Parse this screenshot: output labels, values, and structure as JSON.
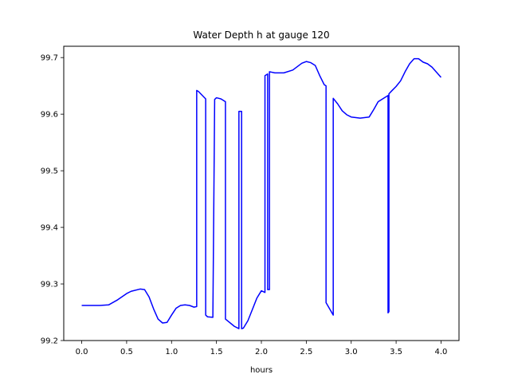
{
  "chart_data": {
    "type": "line",
    "title": "Water Depth h at gauge 120",
    "xlabel": "hours",
    "ylabel": "",
    "xlim": [
      -0.2,
      4.2
    ],
    "ylim": [
      99.2,
      99.72
    ],
    "grid": false,
    "legend": "none",
    "xticks": [
      {
        "value": 0.0,
        "label": "0.0"
      },
      {
        "value": 0.5,
        "label": "0.5"
      },
      {
        "value": 1.0,
        "label": "1.0"
      },
      {
        "value": 1.5,
        "label": "1.5"
      },
      {
        "value": 2.0,
        "label": "2.0"
      },
      {
        "value": 2.5,
        "label": "2.5"
      },
      {
        "value": 3.0,
        "label": "3.0"
      },
      {
        "value": 3.5,
        "label": "3.5"
      },
      {
        "value": 4.0,
        "label": "4.0"
      }
    ],
    "yticks": [
      {
        "value": 99.2,
        "label": "99.2"
      },
      {
        "value": 99.3,
        "label": "99.3"
      },
      {
        "value": 99.4,
        "label": "99.4"
      },
      {
        "value": 99.5,
        "label": "99.5"
      },
      {
        "value": 99.6,
        "label": "99.6"
      },
      {
        "value": 99.7,
        "label": "99.7"
      }
    ],
    "series": [
      {
        "color": "#0000ff",
        "x": [
          0.0,
          0.1,
          0.2,
          0.3,
          0.4,
          0.5,
          0.55,
          0.65,
          0.7,
          0.75,
          0.8,
          0.85,
          0.9,
          0.95,
          1.0,
          1.05,
          1.1,
          1.15,
          1.2,
          1.25,
          1.28,
          1.28,
          1.3,
          1.38,
          1.38,
          1.4,
          1.46,
          1.48,
          1.5,
          1.55,
          1.6,
          1.6,
          1.7,
          1.75,
          1.75,
          1.78,
          1.78,
          1.8,
          1.85,
          1.9,
          1.95,
          2.0,
          2.04,
          2.04,
          2.07,
          2.07,
          2.09,
          2.09,
          2.15,
          2.25,
          2.35,
          2.45,
          2.5,
          2.55,
          2.6,
          2.65,
          2.7,
          2.72,
          2.72,
          2.8,
          2.8,
          2.85,
          2.9,
          2.95,
          3.0,
          3.1,
          3.2,
          3.25,
          3.3,
          3.38,
          3.4,
          3.41,
          3.41,
          3.42,
          3.42,
          3.45,
          3.5,
          3.55,
          3.6,
          3.65,
          3.7,
          3.75,
          3.8,
          3.85,
          3.9,
          3.95,
          4.0
        ],
        "y": [
          99.262,
          99.262,
          99.262,
          99.263,
          99.272,
          99.283,
          99.287,
          99.291,
          99.29,
          99.277,
          99.256,
          99.238,
          99.231,
          99.232,
          99.245,
          99.257,
          99.262,
          99.263,
          99.262,
          99.259,
          99.26,
          99.642,
          99.64,
          99.627,
          99.245,
          99.242,
          99.241,
          99.626,
          99.629,
          99.627,
          99.622,
          99.238,
          99.225,
          99.221,
          99.605,
          99.605,
          99.221,
          99.222,
          99.235,
          99.255,
          99.275,
          99.288,
          99.285,
          99.668,
          99.671,
          99.29,
          99.29,
          99.675,
          99.673,
          99.673,
          99.678,
          99.69,
          99.693,
          99.691,
          99.686,
          99.668,
          99.652,
          99.65,
          99.267,
          99.245,
          99.628,
          99.618,
          99.606,
          99.599,
          99.595,
          99.593,
          99.595,
          99.608,
          99.622,
          99.63,
          99.632,
          99.633,
          99.249,
          99.251,
          99.636,
          99.641,
          99.649,
          99.659,
          99.675,
          99.689,
          99.698,
          99.698,
          99.692,
          99.689,
          99.683,
          99.674,
          99.665
        ]
      }
    ]
  }
}
